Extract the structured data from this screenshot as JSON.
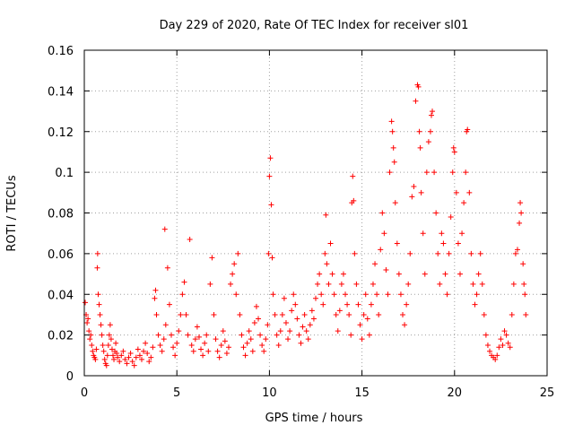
{
  "chart_data": {
    "type": "scatter",
    "title": "Day 229 of 2020, Rate Of TEC Index for receiver sl01",
    "xlabel": "GPS time / hours",
    "ylabel": "ROTI / TECUs",
    "xlim": [
      0,
      25
    ],
    "ylim": [
      0,
      0.16
    ],
    "x_ticks": [
      0,
      5,
      10,
      15,
      20,
      25
    ],
    "x_tick_labels": [
      "0",
      "5",
      "10",
      "15",
      "20",
      "25"
    ],
    "y_ticks": [
      0,
      0.02,
      0.04,
      0.06,
      0.08,
      0.1,
      0.12,
      0.14,
      0.16
    ],
    "y_tick_labels": [
      "0",
      "0.02",
      "0.04",
      "0.06",
      "0.08",
      "0.1",
      "0.12",
      "0.14",
      "0.16"
    ],
    "grid": true,
    "legend": "none",
    "marker": "+",
    "marker_color": "#ff0000",
    "series": [
      {
        "points": [
          [
            0.05,
            0.036
          ],
          [
            0.1,
            0.03
          ],
          [
            0.15,
            0.026
          ],
          [
            0.2,
            0.028
          ],
          [
            0.25,
            0.022
          ],
          [
            0.3,
            0.018
          ],
          [
            0.35,
            0.02
          ],
          [
            0.4,
            0.015
          ],
          [
            0.45,
            0.012
          ],
          [
            0.5,
            0.01
          ],
          [
            0.55,
            0.009
          ],
          [
            0.6,
            0.008
          ],
          [
            0.65,
            0.013
          ],
          [
            0.7,
            0.053
          ],
          [
            0.72,
            0.06
          ],
          [
            0.75,
            0.04
          ],
          [
            0.8,
            0.035
          ],
          [
            0.85,
            0.03
          ],
          [
            0.9,
            0.025
          ],
          [
            0.95,
            0.02
          ],
          [
            1.0,
            0.015
          ],
          [
            1.05,
            0.012
          ],
          [
            1.1,
            0.008
          ],
          [
            1.15,
            0.006
          ],
          [
            1.2,
            0.005
          ],
          [
            1.25,
            0.01
          ],
          [
            1.3,
            0.015
          ],
          [
            1.35,
            0.02
          ],
          [
            1.4,
            0.025
          ],
          [
            1.45,
            0.018
          ],
          [
            1.5,
            0.013
          ],
          [
            1.55,
            0.01
          ],
          [
            1.6,
            0.008
          ],
          [
            1.65,
            0.012
          ],
          [
            1.7,
            0.016
          ],
          [
            1.75,
            0.011
          ],
          [
            1.8,
            0.009
          ],
          [
            1.9,
            0.007
          ],
          [
            2.0,
            0.01
          ],
          [
            2.1,
            0.012
          ],
          [
            2.2,
            0.008
          ],
          [
            2.3,
            0.006
          ],
          [
            2.4,
            0.009
          ],
          [
            2.5,
            0.011
          ],
          [
            2.6,
            0.007
          ],
          [
            2.7,
            0.005
          ],
          [
            2.8,
            0.009
          ],
          [
            2.9,
            0.013
          ],
          [
            3.0,
            0.01
          ],
          [
            3.1,
            0.008
          ],
          [
            3.2,
            0.012
          ],
          [
            3.3,
            0.016
          ],
          [
            3.4,
            0.011
          ],
          [
            3.5,
            0.007
          ],
          [
            3.6,
            0.009
          ],
          [
            3.7,
            0.014
          ],
          [
            3.8,
            0.038
          ],
          [
            3.85,
            0.042
          ],
          [
            3.9,
            0.03
          ],
          [
            4.0,
            0.02
          ],
          [
            4.1,
            0.015
          ],
          [
            4.2,
            0.012
          ],
          [
            4.3,
            0.018
          ],
          [
            4.35,
            0.072
          ],
          [
            4.4,
            0.025
          ],
          [
            4.5,
            0.053
          ],
          [
            4.6,
            0.035
          ],
          [
            4.7,
            0.02
          ],
          [
            4.8,
            0.014
          ],
          [
            4.9,
            0.01
          ],
          [
            5.0,
            0.016
          ],
          [
            5.1,
            0.022
          ],
          [
            5.2,
            0.03
          ],
          [
            5.3,
            0.04
          ],
          [
            5.4,
            0.046
          ],
          [
            5.5,
            0.03
          ],
          [
            5.6,
            0.02
          ],
          [
            5.7,
            0.067
          ],
          [
            5.8,
            0.015
          ],
          [
            5.9,
            0.012
          ],
          [
            6.0,
            0.018
          ],
          [
            6.1,
            0.024
          ],
          [
            6.2,
            0.019
          ],
          [
            6.3,
            0.013
          ],
          [
            6.4,
            0.01
          ],
          [
            6.5,
            0.016
          ],
          [
            6.6,
            0.02
          ],
          [
            6.7,
            0.012
          ],
          [
            6.8,
            0.045
          ],
          [
            6.9,
            0.058
          ],
          [
            7.0,
            0.03
          ],
          [
            7.1,
            0.018
          ],
          [
            7.2,
            0.012
          ],
          [
            7.3,
            0.009
          ],
          [
            7.4,
            0.015
          ],
          [
            7.5,
            0.022
          ],
          [
            7.6,
            0.017
          ],
          [
            7.7,
            0.011
          ],
          [
            7.8,
            0.014
          ],
          [
            7.9,
            0.045
          ],
          [
            8.0,
            0.05
          ],
          [
            8.1,
            0.055
          ],
          [
            8.2,
            0.04
          ],
          [
            8.3,
            0.06
          ],
          [
            8.4,
            0.03
          ],
          [
            8.5,
            0.02
          ],
          [
            8.6,
            0.014
          ],
          [
            8.7,
            0.01
          ],
          [
            8.8,
            0.016
          ],
          [
            8.9,
            0.022
          ],
          [
            9.0,
            0.018
          ],
          [
            9.1,
            0.012
          ],
          [
            9.2,
            0.026
          ],
          [
            9.3,
            0.034
          ],
          [
            9.4,
            0.028
          ],
          [
            9.5,
            0.02
          ],
          [
            9.6,
            0.015
          ],
          [
            9.7,
            0.012
          ],
          [
            9.8,
            0.018
          ],
          [
            9.9,
            0.025
          ],
          [
            9.95,
            0.06
          ],
          [
            10.0,
            0.098
          ],
          [
            10.05,
            0.107
          ],
          [
            10.1,
            0.084
          ],
          [
            10.15,
            0.058
          ],
          [
            10.2,
            0.04
          ],
          [
            10.3,
            0.03
          ],
          [
            10.4,
            0.02
          ],
          [
            10.5,
            0.015
          ],
          [
            10.6,
            0.022
          ],
          [
            10.7,
            0.03
          ],
          [
            10.8,
            0.038
          ],
          [
            10.9,
            0.026
          ],
          [
            11.0,
            0.018
          ],
          [
            11.1,
            0.022
          ],
          [
            11.2,
            0.032
          ],
          [
            11.3,
            0.04
          ],
          [
            11.4,
            0.035
          ],
          [
            11.5,
            0.028
          ],
          [
            11.6,
            0.02
          ],
          [
            11.7,
            0.016
          ],
          [
            11.8,
            0.024
          ],
          [
            11.9,
            0.03
          ],
          [
            12.0,
            0.022
          ],
          [
            12.1,
            0.018
          ],
          [
            12.2,
            0.025
          ],
          [
            12.3,
            0.032
          ],
          [
            12.4,
            0.028
          ],
          [
            12.5,
            0.038
          ],
          [
            12.6,
            0.045
          ],
          [
            12.7,
            0.05
          ],
          [
            12.8,
            0.04
          ],
          [
            12.9,
            0.035
          ],
          [
            13.0,
            0.06
          ],
          [
            13.05,
            0.079
          ],
          [
            13.1,
            0.055
          ],
          [
            13.2,
            0.045
          ],
          [
            13.3,
            0.065
          ],
          [
            13.4,
            0.05
          ],
          [
            13.5,
            0.04
          ],
          [
            13.6,
            0.03
          ],
          [
            13.7,
            0.022
          ],
          [
            13.8,
            0.032
          ],
          [
            13.9,
            0.045
          ],
          [
            14.0,
            0.05
          ],
          [
            14.1,
            0.04
          ],
          [
            14.2,
            0.035
          ],
          [
            14.3,
            0.03
          ],
          [
            14.4,
            0.02
          ],
          [
            14.45,
            0.085
          ],
          [
            14.5,
            0.098
          ],
          [
            14.55,
            0.086
          ],
          [
            14.6,
            0.06
          ],
          [
            14.7,
            0.045
          ],
          [
            14.8,
            0.035
          ],
          [
            14.9,
            0.025
          ],
          [
            15.0,
            0.018
          ],
          [
            15.1,
            0.03
          ],
          [
            15.2,
            0.04
          ],
          [
            15.3,
            0.028
          ],
          [
            15.4,
            0.02
          ],
          [
            15.5,
            0.035
          ],
          [
            15.6,
            0.045
          ],
          [
            15.7,
            0.055
          ],
          [
            15.8,
            0.04
          ],
          [
            15.9,
            0.03
          ],
          [
            16.0,
            0.062
          ],
          [
            16.1,
            0.08
          ],
          [
            16.2,
            0.07
          ],
          [
            16.3,
            0.052
          ],
          [
            16.4,
            0.04
          ],
          [
            16.5,
            0.1
          ],
          [
            16.6,
            0.125
          ],
          [
            16.65,
            0.12
          ],
          [
            16.7,
            0.112
          ],
          [
            16.75,
            0.105
          ],
          [
            16.8,
            0.085
          ],
          [
            16.9,
            0.065
          ],
          [
            17.0,
            0.05
          ],
          [
            17.1,
            0.04
          ],
          [
            17.2,
            0.03
          ],
          [
            17.3,
            0.025
          ],
          [
            17.4,
            0.035
          ],
          [
            17.5,
            0.045
          ],
          [
            17.6,
            0.06
          ],
          [
            17.7,
            0.088
          ],
          [
            17.8,
            0.093
          ],
          [
            17.9,
            0.135
          ],
          [
            18.0,
            0.143
          ],
          [
            18.05,
            0.142
          ],
          [
            18.1,
            0.12
          ],
          [
            18.15,
            0.112
          ],
          [
            18.2,
            0.09
          ],
          [
            18.3,
            0.07
          ],
          [
            18.4,
            0.05
          ],
          [
            18.5,
            0.1
          ],
          [
            18.6,
            0.115
          ],
          [
            18.7,
            0.12
          ],
          [
            18.75,
            0.128
          ],
          [
            18.8,
            0.13
          ],
          [
            18.9,
            0.1
          ],
          [
            19.0,
            0.08
          ],
          [
            19.1,
            0.06
          ],
          [
            19.2,
            0.045
          ],
          [
            19.3,
            0.07
          ],
          [
            19.4,
            0.065
          ],
          [
            19.5,
            0.05
          ],
          [
            19.6,
            0.04
          ],
          [
            19.7,
            0.06
          ],
          [
            19.8,
            0.078
          ],
          [
            19.9,
            0.1
          ],
          [
            19.95,
            0.112
          ],
          [
            20.0,
            0.11
          ],
          [
            20.1,
            0.09
          ],
          [
            20.2,
            0.065
          ],
          [
            20.3,
            0.05
          ],
          [
            20.4,
            0.07
          ],
          [
            20.5,
            0.085
          ],
          [
            20.6,
            0.1
          ],
          [
            20.65,
            0.12
          ],
          [
            20.7,
            0.121
          ],
          [
            20.8,
            0.09
          ],
          [
            20.9,
            0.06
          ],
          [
            21.0,
            0.045
          ],
          [
            21.1,
            0.035
          ],
          [
            21.2,
            0.04
          ],
          [
            21.3,
            0.05
          ],
          [
            21.4,
            0.06
          ],
          [
            21.5,
            0.045
          ],
          [
            21.6,
            0.03
          ],
          [
            21.7,
            0.02
          ],
          [
            21.8,
            0.015
          ],
          [
            21.9,
            0.012
          ],
          [
            22.0,
            0.01
          ],
          [
            22.1,
            0.009
          ],
          [
            22.2,
            0.008
          ],
          [
            22.3,
            0.01
          ],
          [
            22.4,
            0.014
          ],
          [
            22.5,
            0.018
          ],
          [
            22.6,
            0.015
          ],
          [
            22.7,
            0.022
          ],
          [
            22.8,
            0.02
          ],
          [
            22.9,
            0.016
          ],
          [
            23.0,
            0.014
          ],
          [
            23.1,
            0.03
          ],
          [
            23.2,
            0.045
          ],
          [
            23.3,
            0.06
          ],
          [
            23.4,
            0.062
          ],
          [
            23.5,
            0.075
          ],
          [
            23.55,
            0.085
          ],
          [
            23.6,
            0.08
          ],
          [
            23.7,
            0.055
          ],
          [
            23.75,
            0.045
          ],
          [
            23.8,
            0.04
          ],
          [
            23.85,
            0.03
          ]
        ]
      }
    ]
  }
}
